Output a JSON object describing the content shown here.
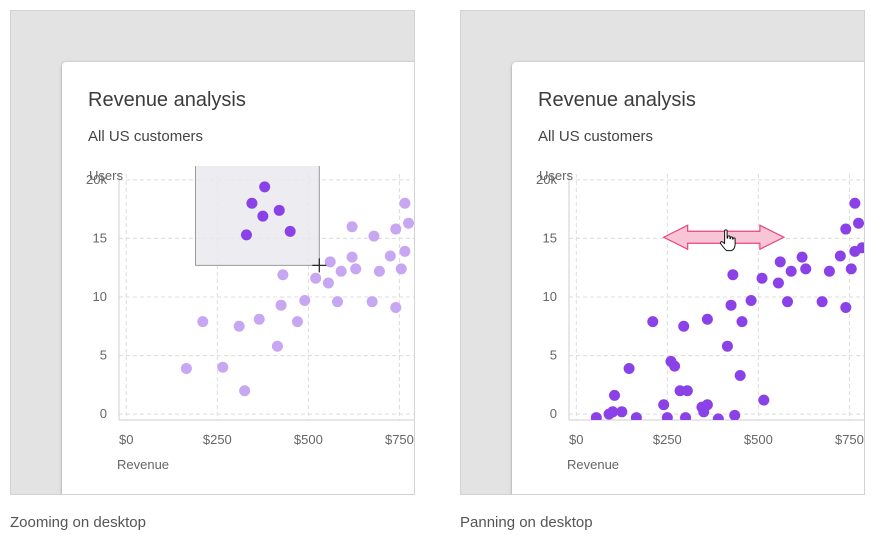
{
  "colors": {
    "dot_faded": "#c7a6f2",
    "dot_highlight": "#8a42e8",
    "dot_full": "#8a42e8",
    "grid": "#dcdcdc",
    "selection_fill": "#e9e9ee",
    "selection_stroke": "#9a9a9a",
    "arrow_fill": "#f8c5d6",
    "arrow_stroke": "#e9447f"
  },
  "icons": {
    "zoom_cursor": "crosshair-icon",
    "pan_cursor": "hand-pointer-icon",
    "pan_arrow": "double-arrow-icon"
  },
  "panels": [
    {
      "id": "zoom",
      "caption": "Zooming on desktop",
      "card": {
        "title": "Revenue analysis",
        "subtitle": "All US customers"
      },
      "chart_data": {
        "type": "scatter",
        "title": "Revenue analysis",
        "subtitle": "All US customers",
        "xlabel": "Revenue",
        "ylabel": "Users",
        "xlim": [
          -20,
          790
        ],
        "ylim": [
          -0.5,
          20.5
        ],
        "x_ticks": [
          0,
          250,
          500,
          750
        ],
        "x_tick_labels": [
          "$0",
          "$250",
          "$500",
          "$750"
        ],
        "y_ticks": [
          0,
          5,
          10,
          15,
          20
        ],
        "y_tick_labels": [
          "0",
          "5",
          "10",
          "15",
          "20k"
        ],
        "grid": true,
        "selection_box": {
          "x": [
            190,
            530
          ],
          "y": [
            12.7,
            21.4
          ]
        },
        "cursor": {
          "x": 530,
          "y": 12.7
        },
        "points": [
          {
            "x": 165,
            "y": 3.9
          },
          {
            "x": 210,
            "y": 7.9
          },
          {
            "x": 265,
            "y": 4.0
          },
          {
            "x": 310,
            "y": 7.5
          },
          {
            "x": 325,
            "y": 2.0
          },
          {
            "x": 365,
            "y": 8.1
          },
          {
            "x": 415,
            "y": 5.8
          },
          {
            "x": 425,
            "y": 9.3
          },
          {
            "x": 430,
            "y": 11.9
          },
          {
            "x": 470,
            "y": 7.9
          },
          {
            "x": 490,
            "y": 9.7
          },
          {
            "x": 520,
            "y": 11.6
          },
          {
            "x": 555,
            "y": 11.2
          },
          {
            "x": 560,
            "y": 13.0
          },
          {
            "x": 580,
            "y": 9.6
          },
          {
            "x": 590,
            "y": 12.2
          },
          {
            "x": 620,
            "y": 13.4
          },
          {
            "x": 620,
            "y": 16.0
          },
          {
            "x": 630,
            "y": 12.4
          },
          {
            "x": 675,
            "y": 9.6
          },
          {
            "x": 680,
            "y": 15.2
          },
          {
            "x": 695,
            "y": 12.2
          },
          {
            "x": 725,
            "y": 13.5
          },
          {
            "x": 740,
            "y": 9.1
          },
          {
            "x": 740,
            "y": 15.8
          },
          {
            "x": 755,
            "y": 12.4
          },
          {
            "x": 765,
            "y": 13.9
          },
          {
            "x": 765,
            "y": 18.0
          },
          {
            "x": 775,
            "y": 16.3
          }
        ],
        "highlighted_points": [
          {
            "x": 330,
            "y": 15.3
          },
          {
            "x": 345,
            "y": 18.0
          },
          {
            "x": 375,
            "y": 16.9
          },
          {
            "x": 380,
            "y": 19.4
          },
          {
            "x": 420,
            "y": 17.4
          },
          {
            "x": 450,
            "y": 15.6
          }
        ]
      }
    },
    {
      "id": "pan",
      "caption": "Panning on desktop",
      "card": {
        "title": "Revenue analysis",
        "subtitle": "All US customers"
      },
      "chart_data": {
        "type": "scatter",
        "title": "Revenue analysis",
        "subtitle": "All US customers",
        "xlabel": "Revenue",
        "ylabel": "Users",
        "xlim": [
          -20,
          790
        ],
        "ylim": [
          -0.5,
          20.5
        ],
        "x_ticks": [
          0,
          250,
          500,
          750
        ],
        "x_tick_labels": [
          "$0",
          "$250",
          "$500",
          "$750"
        ],
        "y_ticks": [
          0,
          5,
          10,
          15,
          20
        ],
        "y_tick_labels": [
          "0",
          "5",
          "10",
          "15",
          "20k"
        ],
        "grid": true,
        "pan_arrow": {
          "x": [
            240,
            570
          ],
          "y": 15.1
        },
        "cursor": {
          "x": 410,
          "y": 14.6
        },
        "points": [
          {
            "x": 55,
            "y": -0.3
          },
          {
            "x": 90,
            "y": 0.0
          },
          {
            "x": 100,
            "y": 0.2
          },
          {
            "x": 105,
            "y": 1.6
          },
          {
            "x": 125,
            "y": 0.2
          },
          {
            "x": 145,
            "y": 3.9
          },
          {
            "x": 165,
            "y": -0.3
          },
          {
            "x": 210,
            "y": 7.9
          },
          {
            "x": 240,
            "y": 0.8
          },
          {
            "x": 250,
            "y": -0.3
          },
          {
            "x": 260,
            "y": 4.5
          },
          {
            "x": 270,
            "y": 4.1
          },
          {
            "x": 285,
            "y": 2.0
          },
          {
            "x": 295,
            "y": 7.5
          },
          {
            "x": 300,
            "y": -0.3
          },
          {
            "x": 305,
            "y": 2.0
          },
          {
            "x": 345,
            "y": 0.6
          },
          {
            "x": 350,
            "y": 0.2
          },
          {
            "x": 360,
            "y": 0.8
          },
          {
            "x": 360,
            "y": 8.1
          },
          {
            "x": 390,
            "y": -0.4
          },
          {
            "x": 415,
            "y": 5.8
          },
          {
            "x": 425,
            "y": 9.3
          },
          {
            "x": 430,
            "y": 11.9
          },
          {
            "x": 435,
            "y": -0.1
          },
          {
            "x": 450,
            "y": 3.3
          },
          {
            "x": 455,
            "y": 7.9
          },
          {
            "x": 480,
            "y": 9.7
          },
          {
            "x": 510,
            "y": 11.6
          },
          {
            "x": 515,
            "y": 1.2
          },
          {
            "x": 555,
            "y": 11.2
          },
          {
            "x": 560,
            "y": 13.0
          },
          {
            "x": 580,
            "y": 9.6
          },
          {
            "x": 590,
            "y": 12.2
          },
          {
            "x": 620,
            "y": 13.4
          },
          {
            "x": 630,
            "y": 12.4
          },
          {
            "x": 675,
            "y": 9.6
          },
          {
            "x": 695,
            "y": 12.2
          },
          {
            "x": 725,
            "y": 13.5
          },
          {
            "x": 740,
            "y": 9.1
          },
          {
            "x": 740,
            "y": 15.8
          },
          {
            "x": 755,
            "y": 12.4
          },
          {
            "x": 765,
            "y": 13.9
          },
          {
            "x": 765,
            "y": 18.0
          },
          {
            "x": 775,
            "y": 16.3
          },
          {
            "x": 785,
            "y": 14.2
          }
        ],
        "highlighted_points": []
      }
    }
  ]
}
